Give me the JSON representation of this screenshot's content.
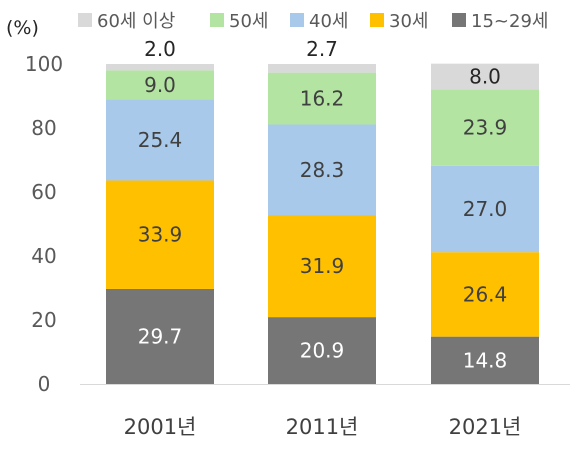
{
  "chart_data": {
    "type": "bar",
    "stacked": true,
    "unit_label": "(%)",
    "categories": [
      "2001년",
      "2011년",
      "2021년"
    ],
    "ylim": [
      0,
      100
    ],
    "yticks": [
      0,
      20,
      40,
      60,
      80,
      100
    ],
    "grid": false,
    "legend_position": "top",
    "series": [
      {
        "name": "15~29세",
        "color": "#767676",
        "label_color": "#ffffff",
        "values": [
          29.7,
          20.9,
          14.8
        ]
      },
      {
        "name": "30세",
        "color": "#ffc000",
        "label_color": "#404040",
        "values": [
          33.9,
          31.9,
          26.4
        ]
      },
      {
        "name": "40세",
        "color": "#a9c9ea",
        "label_color": "#404040",
        "values": [
          25.4,
          28.3,
          27.0
        ]
      },
      {
        "name": "50세",
        "color": "#b3e4a1",
        "label_color": "#404040",
        "values": [
          9.0,
          16.2,
          23.9
        ]
      },
      {
        "name": "60세 이상",
        "color": "#d9d9d9",
        "label_color": "#262626",
        "values": [
          2.0,
          2.7,
          8.0
        ]
      }
    ],
    "legend_order": [
      "60세 이상",
      "50세",
      "40세",
      "30세",
      "15~29세"
    ]
  }
}
